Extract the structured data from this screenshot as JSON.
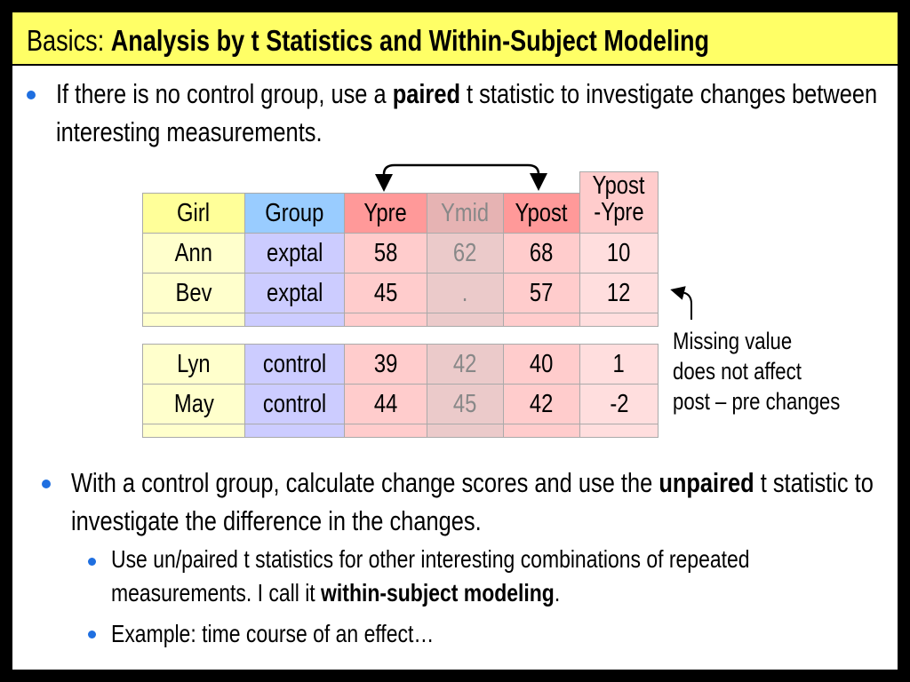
{
  "title": {
    "prefix": "Basics: ",
    "bold": "Analysis by t Statistics and Within-Subject Modeling"
  },
  "bullets": [
    {
      "parts": [
        "If there is no control group, use a ",
        "paired",
        " t statistic to investigate changes between interesting measurements."
      ]
    },
    {
      "parts": [
        "With a control group, calculate change scores and use the ",
        "unpaired",
        " t statistic to investigate the difference in the changes."
      ],
      "sub": [
        {
          "parts": [
            "Use un/paired t statistics for other interesting combinations of repeated measurements.  I call it ",
            "within-subject modeling",
            "."
          ]
        },
        {
          "parts": [
            "Example: time course of an effect…"
          ]
        }
      ]
    }
  ],
  "table": {
    "header": [
      "Girl",
      "Group",
      "Ypre",
      "Ymid",
      "Ypost",
      [
        "Ypost",
        "-Ypre"
      ]
    ],
    "groups": [
      [
        [
          "Ann",
          "exptal",
          58,
          62,
          68,
          10
        ],
        [
          "Bev",
          "exptal",
          45,
          ".",
          57,
          12
        ]
      ],
      [
        [
          "Lyn",
          "control",
          39,
          42,
          40,
          1
        ],
        [
          "May",
          "control",
          44,
          45,
          42,
          -2
        ]
      ]
    ]
  },
  "annotation": [
    "Missing value",
    "does not affect",
    "post – pre changes"
  ]
}
